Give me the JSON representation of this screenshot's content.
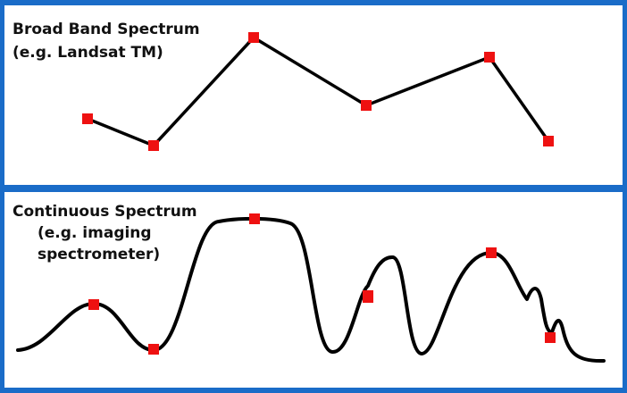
{
  "panels": [
    {
      "title": "Broad Band Spectrum",
      "subtitle": "(e.g. Landsat TM)"
    },
    {
      "title": "Continuous Spectrum",
      "subtitle_lines": [
        "(e.g. imaging",
        "spectrometer)"
      ]
    }
  ]
}
